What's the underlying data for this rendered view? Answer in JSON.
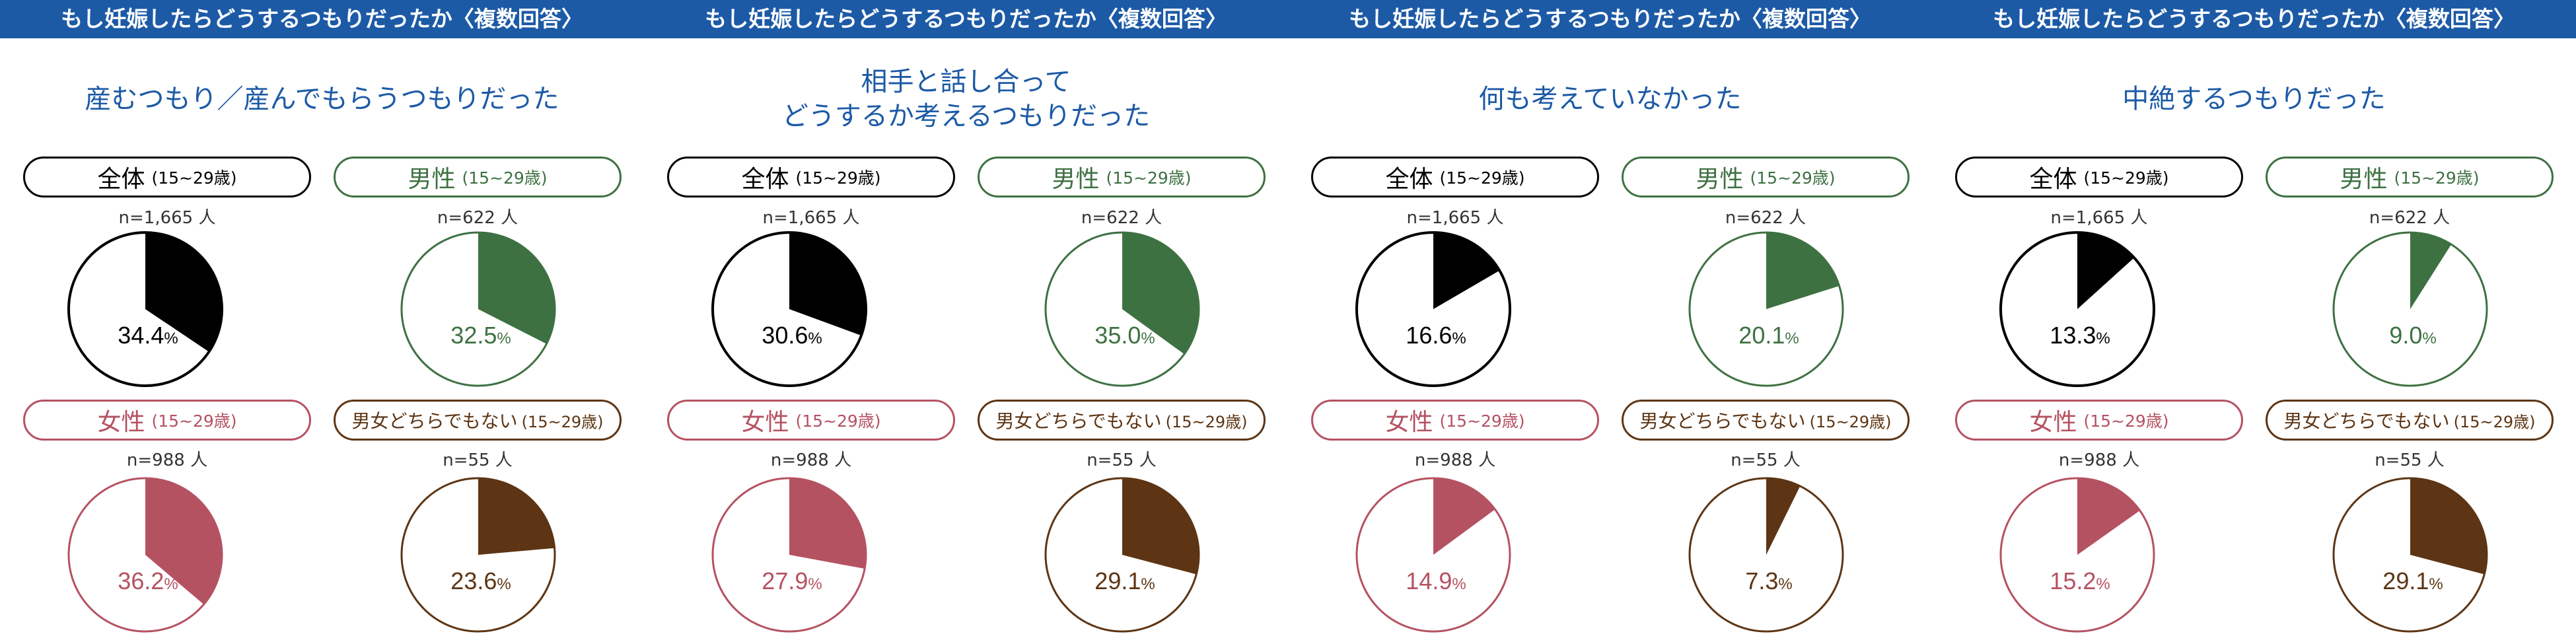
{
  "header_text": "もし妊娠したらどうするつもりだったか〈複数回答〉",
  "colors": {
    "header_bg": "#1c5aa6",
    "title": "#1c5aa6",
    "overall": "#000000",
    "male": "#3e7142",
    "female": "#b55262",
    "other": "#5d3514"
  },
  "groups": [
    {
      "key": "overall",
      "label": "全体",
      "age": "(15~29歳)",
      "n": "n=1,665 人"
    },
    {
      "key": "male",
      "label": "男性",
      "age": "(15~29歳)",
      "n": "n=622 人"
    },
    {
      "key": "female",
      "label": "女性",
      "age": "(15~29歳)",
      "n": "n=988 人"
    },
    {
      "key": "other",
      "label": "男女どちらでもない",
      "age": "(15~29歳)",
      "n": "n=55 人"
    }
  ],
  "chart_data": [
    {
      "type": "pie",
      "title": "産むつもり／産んでもらうつもりだった",
      "values": {
        "overall": 34.4,
        "male": 32.5,
        "female": 36.2,
        "other": 23.6
      }
    },
    {
      "type": "pie",
      "title": "相手と話し合って\nどうするか考えるつもりだった",
      "values": {
        "overall": 30.6,
        "male": 35.0,
        "female": 27.9,
        "other": 29.1
      }
    },
    {
      "type": "pie",
      "title": "何も考えていなかった",
      "values": {
        "overall": 16.6,
        "male": 20.1,
        "female": 14.9,
        "other": 7.3
      }
    },
    {
      "type": "pie",
      "title": "中絶するつもりだった",
      "values": {
        "overall": 13.3,
        "male": 9.0,
        "female": 15.2,
        "other": 29.1
      }
    }
  ]
}
